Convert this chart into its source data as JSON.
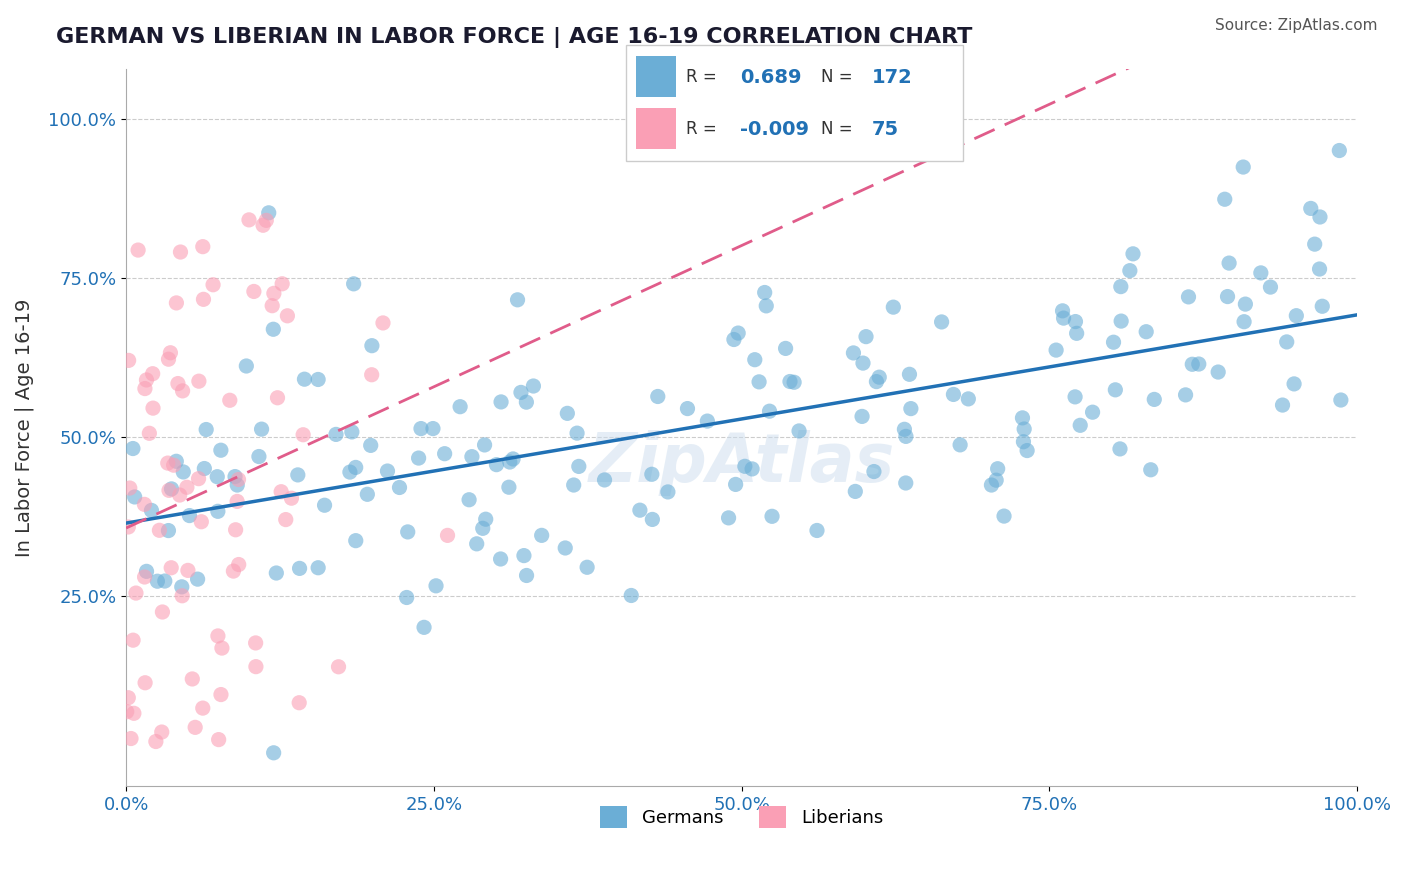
{
  "title": "GERMAN VS LIBERIAN IN LABOR FORCE | AGE 16-19 CORRELATION CHART",
  "source": "Source: ZipAtlas.com",
  "xlabel": "",
  "ylabel": "In Labor Force | Age 16-19",
  "watermark": "ZipAtlas",
  "german_R": 0.689,
  "german_N": 172,
  "liberian_R": -0.009,
  "liberian_N": 75,
  "german_color": "#6baed6",
  "liberian_color": "#fa9fb5",
  "german_line_color": "#2171b5",
  "liberian_line_color": "#e05c8a",
  "background_color": "#ffffff",
  "title_color": "#1a1a2e",
  "axis_label_color": "#333333",
  "legend_R_color": "#2171b5",
  "legend_N_color": "#2171b5",
  "xlim": [
    0,
    1
  ],
  "ylim": [
    0,
    1.05
  ],
  "x_ticks": [
    0.0,
    0.25,
    0.5,
    0.75,
    1.0
  ],
  "x_tick_labels": [
    "0.0%",
    "25.0%",
    "50.0%",
    "75.0%",
    "100.0%"
  ],
  "y_ticks": [
    0.25,
    0.5,
    0.75,
    1.0
  ],
  "y_tick_labels": [
    "25.0%",
    "50.0%",
    "75.0%",
    "100.0%"
  ],
  "german_seed": 42,
  "liberian_seed": 7
}
